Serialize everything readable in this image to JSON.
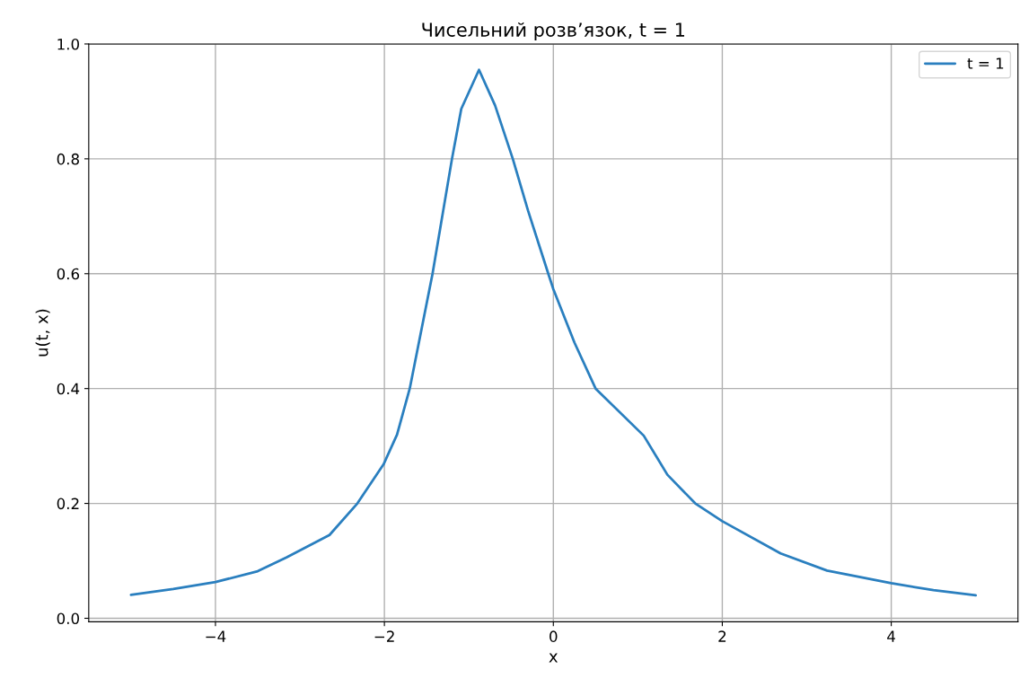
{
  "chart_data": {
    "type": "line",
    "title": "Чисельний розв’язок, t = 1",
    "xlabel": "x",
    "ylabel": "u(t, x)",
    "xlim": [
      -5.5,
      5.5
    ],
    "xticks": [
      {
        "value": -4,
        "label": "−4"
      },
      {
        "value": -2,
        "label": "−2"
      },
      0,
      2,
      4
    ],
    "ylim": [
      -0.006,
      1.0
    ],
    "yticks": [
      {
        "value": 0,
        "label": "0.0"
      },
      0.2,
      0.4,
      0.6,
      0.8,
      {
        "value": 1,
        "label": "1.0"
      }
    ],
    "grid": true,
    "legend": "top right",
    "series": [
      {
        "name": "t = 1",
        "color": "#2a7fbf",
        "x": [
          -5.0,
          -4.5,
          -4.0,
          -3.5,
          -3.16,
          -2.65,
          -2.32,
          -2.01,
          -1.85,
          -1.7,
          -1.43,
          -1.2,
          -1.09,
          -0.88,
          -0.69,
          -0.48,
          -0.3,
          -0.06,
          0.0,
          0.25,
          0.5,
          1.07,
          1.35,
          1.68,
          2.0,
          2.69,
          3.24,
          4.0,
          4.5,
          5.0
        ],
        "values": [
          0.041,
          0.051,
          0.063,
          0.082,
          0.106,
          0.145,
          0.2,
          0.268,
          0.32,
          0.4,
          0.6,
          0.8,
          0.887,
          0.955,
          0.893,
          0.8,
          0.71,
          0.6,
          0.573,
          0.48,
          0.4,
          0.318,
          0.25,
          0.2,
          0.169,
          0.113,
          0.083,
          0.061,
          0.049,
          0.04
        ]
      }
    ]
  }
}
